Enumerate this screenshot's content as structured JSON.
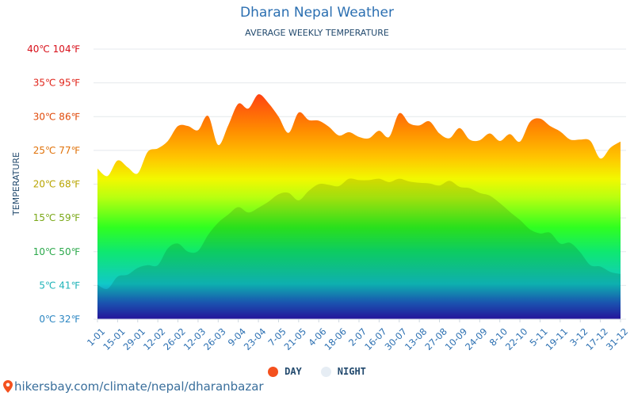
{
  "title": "Dharan Nepal Weather",
  "subtitle": "AVERAGE WEEKLY TEMPERATURE",
  "footer": "hikersbay.com/climate/nepal/dharanbazar",
  "chart_data": {
    "type": "area",
    "title": "Dharan Nepal Weather",
    "subtitle": "AVERAGE WEEKLY TEMPERATURE",
    "ylabel": "TEMPERATURE",
    "xlabel": "",
    "ylim": [
      0,
      40
    ],
    "y_ticks": [
      {
        "c": 0,
        "label": "0℃ 32℉",
        "color": "#2b86c2"
      },
      {
        "c": 5,
        "label": "5℃ 41℉",
        "color": "#1fb3b8"
      },
      {
        "c": 10,
        "label": "10℃ 50℉",
        "color": "#2aa84a"
      },
      {
        "c": 15,
        "label": "15℃ 59℉",
        "color": "#7aa818"
      },
      {
        "c": 20,
        "label": "20℃ 68℉",
        "color": "#b8a400"
      },
      {
        "c": 25,
        "label": "25℃ 77℉",
        "color": "#e0720a"
      },
      {
        "c": 30,
        "label": "30℃ 86℉",
        "color": "#e04a0a"
      },
      {
        "c": 35,
        "label": "35℃ 95℉",
        "color": "#e0241a"
      },
      {
        "c": 40,
        "label": "40℃ 104℉",
        "color": "#d8101a"
      }
    ],
    "x_tick_labels": [
      "1-01",
      "15-01",
      "29-01",
      "12-02",
      "26-02",
      "12-03",
      "26-03",
      "9-04",
      "23-04",
      "7-05",
      "21-05",
      "4-06",
      "18-06",
      "2-07",
      "16-07",
      "30-07",
      "13-08",
      "27-08",
      "10-09",
      "24-09",
      "8-10",
      "22-10",
      "5-11",
      "19-11",
      "3-12",
      "17-12",
      "31-12"
    ],
    "legend": "bottom-center",
    "grid": true,
    "series": [
      {
        "name": "DAY",
        "color": "#f4511e",
        "values": [
          22.3,
          21.2,
          23.5,
          22.5,
          21.6,
          24.8,
          25.3,
          26.4,
          28.6,
          28.6,
          28.0,
          30.1,
          25.8,
          28.7,
          31.9,
          31.2,
          33.3,
          32.0,
          30.0,
          27.6,
          30.6,
          29.5,
          29.4,
          28.5,
          27.2,
          27.7,
          27.0,
          26.8,
          27.9,
          27.0,
          30.5,
          29.0,
          28.7,
          29.3,
          27.5,
          26.8,
          28.3,
          26.6,
          26.5,
          27.5,
          26.4,
          27.4,
          26.3,
          29.2,
          29.7,
          28.6,
          27.8,
          26.6,
          26.6,
          26.4,
          23.8,
          25.4,
          26.3
        ]
      },
      {
        "name": "NIGHT",
        "color": "#e6edf4",
        "values": [
          5.1,
          4.5,
          6.3,
          6.6,
          7.6,
          8.0,
          8.0,
          10.5,
          11.2,
          10.0,
          10.1,
          12.5,
          14.3,
          15.5,
          16.6,
          15.8,
          16.5,
          17.4,
          18.5,
          18.7,
          17.6,
          19.0,
          20.0,
          19.9,
          19.7,
          20.8,
          20.6,
          20.6,
          20.8,
          20.3,
          20.8,
          20.4,
          20.2,
          20.1,
          19.8,
          20.5,
          19.6,
          19.4,
          18.7,
          18.3,
          17.2,
          15.9,
          14.7,
          13.3,
          12.7,
          12.8,
          11.2,
          11.3,
          9.9,
          8.0,
          7.8,
          7.0,
          6.7
        ]
      }
    ]
  }
}
